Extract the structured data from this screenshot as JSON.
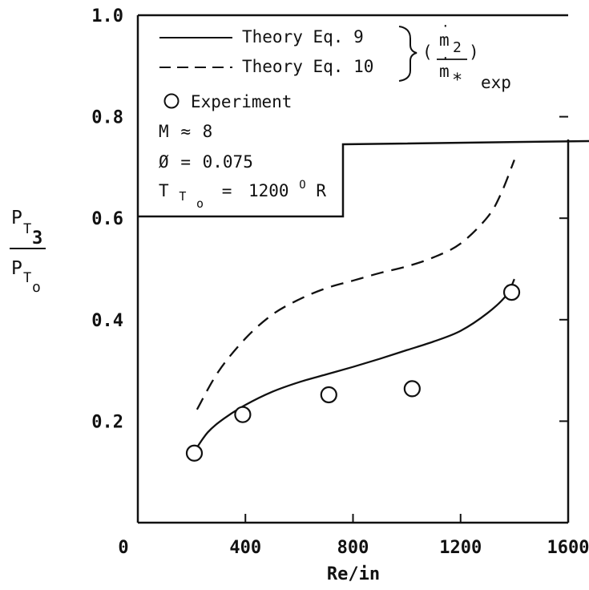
{
  "chart_data": {
    "type": "line",
    "xlabel": "Re/in",
    "ylabel": {
      "num_main": "P",
      "num_sub": "T",
      "num_subsub": "3",
      "den_main": "P",
      "den_sub": "T",
      "den_subsub": "o"
    },
    "xlim": [
      0,
      1600
    ],
    "ylim": [
      0.0,
      1.0
    ],
    "x_ticks": [
      {
        "value": 0,
        "label": "0"
      },
      {
        "value": 400,
        "label": "400"
      },
      {
        "value": 800,
        "label": "800"
      },
      {
        "value": 1200,
        "label": "1200"
      },
      {
        "value": 1600,
        "label": "1600"
      }
    ],
    "y_ticks": [
      {
        "value": 0.2,
        "label": "0.2"
      },
      {
        "value": 0.4,
        "label": "0.4"
      },
      {
        "value": 0.6,
        "label": "0.6"
      },
      {
        "value": 0.8,
        "label": "0.8"
      },
      {
        "value": 1.0,
        "label": "1.0"
      }
    ],
    "grid": false,
    "legend_position": "top-left",
    "series": [
      {
        "name": "Theory Eq. 9",
        "style": "solid",
        "x": [
          210,
          260,
          320,
          400,
          500,
          600,
          700,
          800,
          900,
          1000,
          1100,
          1200,
          1300,
          1370,
          1400
        ],
        "y": [
          0.14,
          0.178,
          0.205,
          0.232,
          0.258,
          0.277,
          0.292,
          0.307,
          0.323,
          0.34,
          0.357,
          0.378,
          0.413,
          0.448,
          0.48
        ]
      },
      {
        "name": "Theory Eq. 10",
        "style": "dashed",
        "x": [
          220,
          300,
          400,
          500,
          600,
          700,
          800,
          900,
          1000,
          1100,
          1200,
          1300,
          1350,
          1400
        ],
        "y": [
          0.223,
          0.298,
          0.363,
          0.41,
          0.44,
          0.462,
          0.477,
          0.492,
          0.505,
          0.523,
          0.55,
          0.602,
          0.648,
          0.715
        ]
      },
      {
        "name": "Experiment",
        "style": "markers",
        "marker": "circle",
        "x": [
          210,
          390,
          710,
          1020,
          1390
        ],
        "y": [
          0.137,
          0.213,
          0.252,
          0.264,
          0.454
        ]
      }
    ],
    "legend_bracket_label": {
      "main": "m",
      "num_sub": "2",
      "den_sub": "*",
      "suffix": "exp"
    },
    "annotations": [
      {
        "prefix": "M",
        "symbol": "≈",
        "value": "8"
      },
      {
        "prefix": "Ø",
        "symbol": "=",
        "value": "0.075"
      },
      {
        "prefix": "T",
        "sub": "T",
        "subsub": "o",
        "symbol": "=",
        "value": "1200",
        "sup": "O",
        "unit": "R"
      }
    ]
  }
}
